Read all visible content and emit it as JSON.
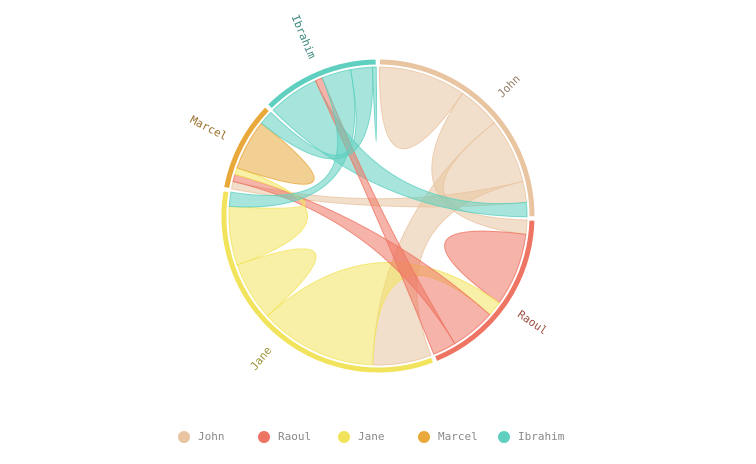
{
  "chart_data": {
    "type": "chord",
    "title": "",
    "groups": [
      {
        "name": "John",
        "color": "#e8c4a0"
      },
      {
        "name": "Raoul",
        "color": "#ee7563"
      },
      {
        "name": "Jane",
        "color": "#f2e35c"
      },
      {
        "name": "Marcel",
        "color": "#e8a83a"
      },
      {
        "name": "Ibrahim",
        "color": "#5fcfc0"
      }
    ],
    "matrix": [
      [
        11975,
        5871,
        8916,
        2868,
        1951
      ],
      [
        1951,
        10048,
        2060,
        6171,
        3171
      ],
      [
        8010,
        16145,
        8090,
        8045,
        1951
      ],
      [
        1013,
        990,
        940,
        6907,
        1951
      ],
      [
        7000,
        1000,
        4000,
        3000,
        500
      ]
    ],
    "legend": {
      "position": "bottom",
      "items": [
        {
          "label": "John",
          "color": "#e8c4a0"
        },
        {
          "label": "Raoul",
          "color": "#ee7563"
        },
        {
          "label": "Jane",
          "color": "#f2e35c"
        },
        {
          "label": "Marcel",
          "color": "#e8a83a"
        },
        {
          "label": "Ibrahim",
          "color": "#5fcfc0"
        }
      ]
    }
  }
}
